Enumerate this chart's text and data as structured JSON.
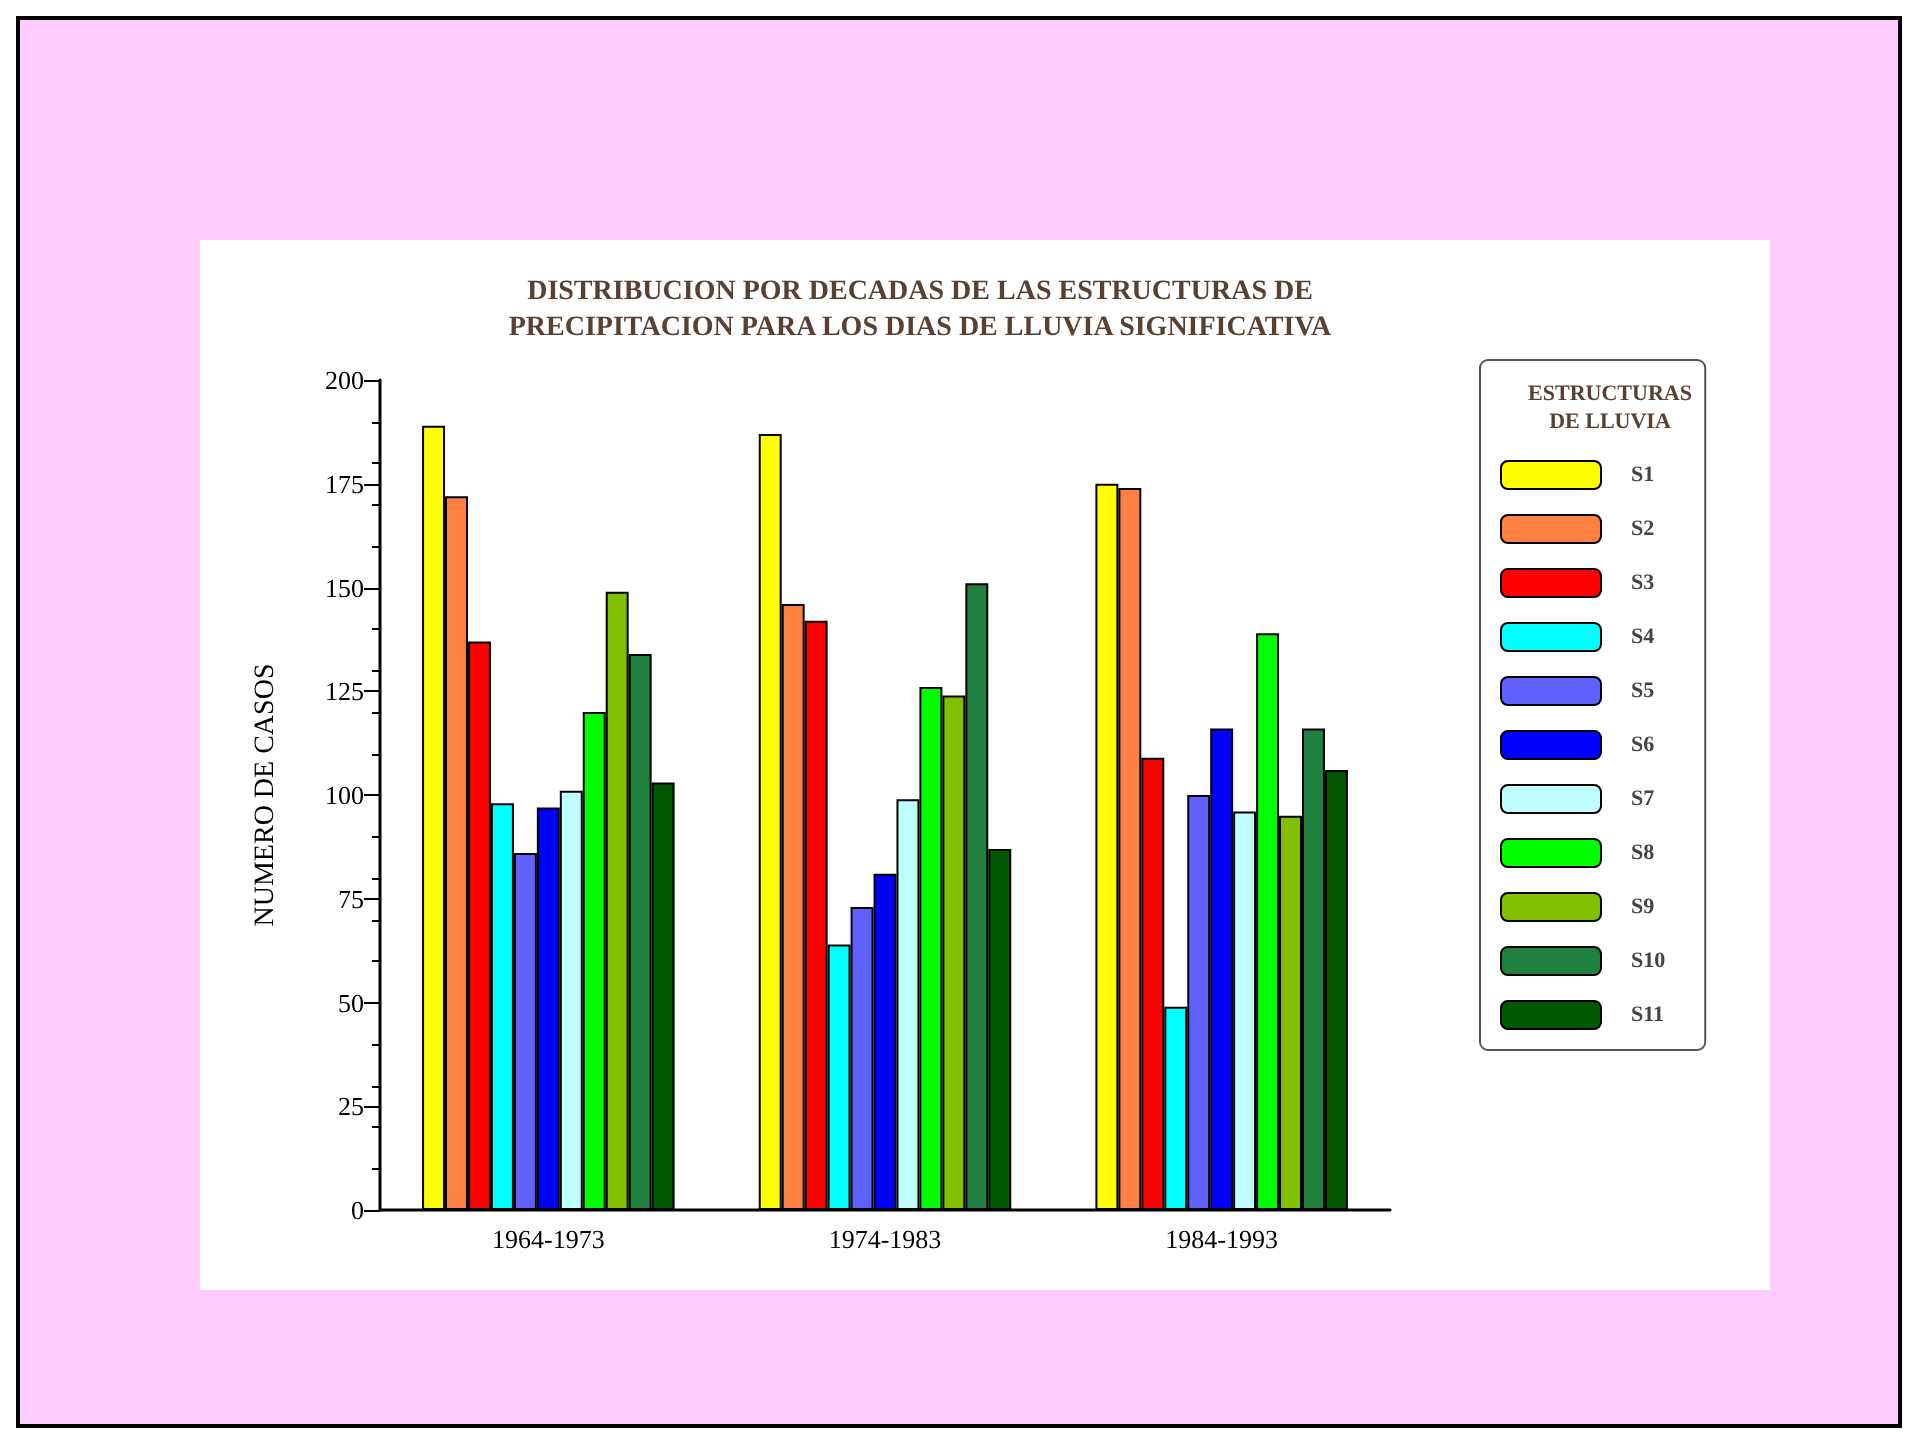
{
  "chart_data": {
    "type": "bar",
    "title": "DISTRIBUCION POR DECADAS DE LAS ESTRUCTURAS DE\nPRECIPITACION PARA LOS DIAS DE LLUVIA SIGNIFICATIVA",
    "ylabel": "NUMERO DE CASOS",
    "legend_title": "ESTRUCTURAS\nDE LLUVIA",
    "categories": [
      "1964-1973",
      "1974-1983",
      "1984-1993"
    ],
    "series": [
      {
        "name": "S1",
        "color": "#ffff00",
        "values": [
          189,
          187,
          175
        ]
      },
      {
        "name": "S2",
        "color": "#ff8040",
        "values": [
          172,
          146,
          174
        ]
      },
      {
        "name": "S3",
        "color": "#ff0000",
        "values": [
          137,
          142,
          109
        ]
      },
      {
        "name": "S4",
        "color": "#00ffff",
        "values": [
          98,
          64,
          49
        ]
      },
      {
        "name": "S5",
        "color": "#6060ff",
        "values": [
          86,
          73,
          100
        ]
      },
      {
        "name": "S6",
        "color": "#0000ff",
        "values": [
          97,
          81,
          116
        ]
      },
      {
        "name": "S7",
        "color": "#c0ffff",
        "values": [
          101,
          99,
          96
        ]
      },
      {
        "name": "S8",
        "color": "#00ff00",
        "values": [
          120,
          126,
          139
        ]
      },
      {
        "name": "S9",
        "color": "#80c000",
        "values": [
          149,
          124,
          95
        ]
      },
      {
        "name": "S10",
        "color": "#208040",
        "values": [
          134,
          151,
          116
        ]
      },
      {
        "name": "S11",
        "color": "#005800",
        "values": [
          103,
          87,
          106
        ]
      }
    ],
    "ylim": [
      0,
      200
    ],
    "yticks": [
      0,
      25,
      50,
      75,
      100,
      125,
      150,
      175,
      200
    ],
    "grid": false,
    "legend": "right"
  }
}
